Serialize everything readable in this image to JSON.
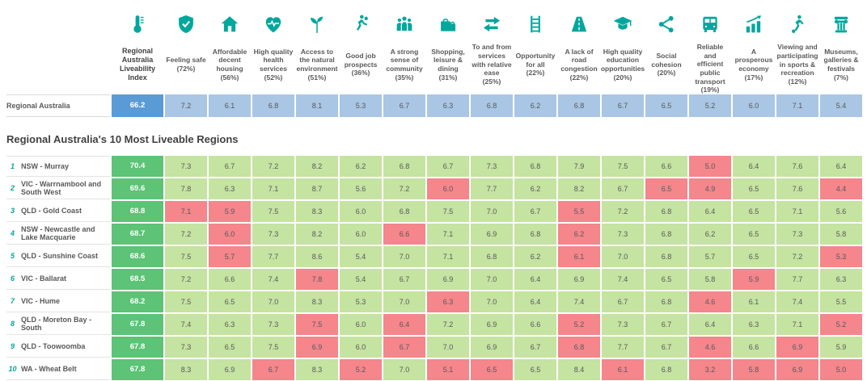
{
  "colors": {
    "teal": "#00A79D",
    "text": "#58595B",
    "title_text": "#414042",
    "index_blue": "#5B9BD5",
    "cell_blue": "#A9C6E4",
    "index_green": "#5CC377",
    "cell_green": "#C5E3A1",
    "cell_red": "#F4868C"
  },
  "chart_data": {
    "type": "heatmap",
    "title": "Regional Australia's 10 Most Liveable Regions",
    "index_header": "Regional Australia Liveability Index",
    "index_header_icon": "thermometer-icon",
    "value_range": [
      0,
      10
    ],
    "columns": [
      {
        "icon": "shield-check-icon",
        "label": "Feeling safe",
        "pct": "(72%)"
      },
      {
        "icon": "house-icon",
        "label": "Affordable decent housing",
        "pct": "(56%)"
      },
      {
        "icon": "heart-pulse-icon",
        "label": "High quality health services",
        "pct": "(52%)"
      },
      {
        "icon": "plant-icon",
        "label": "Access to the natural environment",
        "pct": "(51%)"
      },
      {
        "icon": "runner-icon",
        "label": "Good job prospects",
        "pct": "(36%)"
      },
      {
        "icon": "people-icon",
        "label": "A strong sense of community",
        "pct": "(35%)"
      },
      {
        "icon": "shopping-bag-icon",
        "label": "Shopping, leisure & dining",
        "pct": "(31%)"
      },
      {
        "icon": "arrows-leftright-icon",
        "label": "To and from services with relative ease",
        "pct": "(25%)"
      },
      {
        "icon": "ladder-icon",
        "label": "Opportunity for all",
        "pct": "(22%)"
      },
      {
        "icon": "road-icon",
        "label": "A lack of road congestion",
        "pct": "(22%)"
      },
      {
        "icon": "graduation-cap-icon",
        "label": "High quality education opportunities",
        "pct": "(20%)"
      },
      {
        "icon": "share-nodes-icon",
        "label": "Social cohesion",
        "pct": "(20%)"
      },
      {
        "icon": "bus-icon",
        "label": "Reliable and efficient public transport",
        "pct": "(19%)"
      },
      {
        "icon": "chart-growth-icon",
        "label": "A prosperous economy",
        "pct": "(17%)"
      },
      {
        "icon": "sports-person-icon",
        "label": "Viewing and participating in sports & recreation",
        "pct": "(12%)"
      },
      {
        "icon": "museum-icon",
        "label": "Museums, galleries & festivals",
        "pct": "(7%)"
      }
    ],
    "baseline": {
      "name": "Regional Australia",
      "index": "66.2",
      "values": [
        "7.2",
        "6.1",
        "6.8",
        "8.1",
        "5.3",
        "6.7",
        "6.3",
        "6.8",
        "6.2",
        "6.8",
        "6.7",
        "6.5",
        "5.2",
        "6.0",
        "7.1",
        "5.4"
      ]
    },
    "regions": [
      {
        "rank": "1",
        "name": "NSW - Murray",
        "index": "70.4",
        "values": [
          "7.3",
          "6.7",
          "7.2",
          "8.2",
          "6.2",
          "6.8",
          "6.7",
          "7.3",
          "6.8",
          "7.9",
          "7.5",
          "6.6",
          "5.0",
          "6.4",
          "7.6",
          "6.4"
        ],
        "low_cells": [
          12
        ]
      },
      {
        "rank": "2",
        "name": "VIC - Warrnambool and South West",
        "index": "69.6",
        "values": [
          "7.8",
          "6.3",
          "7.1",
          "8.7",
          "5.6",
          "7.2",
          "6.0",
          "7.7",
          "6.2",
          "8.2",
          "6.7",
          "6.5",
          "4.9",
          "6.5",
          "7.6",
          "4.4"
        ],
        "low_cells": [
          6,
          11,
          12,
          15
        ]
      },
      {
        "rank": "3",
        "name": "QLD - Gold Coast",
        "index": "68.8",
        "values": [
          "7.1",
          "5.9",
          "7.5",
          "8.3",
          "6.0",
          "6.8",
          "7.5",
          "7.0",
          "6.7",
          "5.5",
          "7.2",
          "6.8",
          "6.4",
          "6.5",
          "7.1",
          "5.6"
        ],
        "low_cells": [
          0,
          1,
          9
        ]
      },
      {
        "rank": "4",
        "name": "NSW - Newcastle and Lake Macquarie",
        "index": "68.7",
        "values": [
          "7.2",
          "6.0",
          "7.3",
          "8.2",
          "6.0",
          "6.6",
          "7.1",
          "6.9",
          "6.8",
          "6.2",
          "7.3",
          "6.8",
          "6.2",
          "6.5",
          "7.3",
          "5.8"
        ],
        "low_cells": [
          1,
          5,
          9
        ]
      },
      {
        "rank": "5",
        "name": "QLD - Sunshine Coast",
        "index": "68.6",
        "values": [
          "7.5",
          "5.7",
          "7.7",
          "8.6",
          "5.4",
          "7.0",
          "7.1",
          "6.8",
          "6.2",
          "6.1",
          "7.0",
          "6.8",
          "5.7",
          "6.5",
          "7.2",
          "5.3"
        ],
        "low_cells": [
          1,
          9,
          15
        ]
      },
      {
        "rank": "6",
        "name": "VIC - Ballarat",
        "index": "68.5",
        "values": [
          "7.2",
          "6.6",
          "7.4",
          "7.8",
          "5.4",
          "6.7",
          "6.9",
          "7.0",
          "6.4",
          "6.9",
          "7.4",
          "6.5",
          "5.8",
          "5.9",
          "7.7",
          "6.3"
        ],
        "low_cells": [
          3,
          13
        ]
      },
      {
        "rank": "7",
        "name": "VIC - Hume",
        "index": "68.2",
        "values": [
          "7.5",
          "6.5",
          "7.0",
          "8.3",
          "5.3",
          "7.0",
          "6.3",
          "7.0",
          "6.4",
          "7.4",
          "6.7",
          "6.8",
          "4.6",
          "6.1",
          "7.4",
          "5.5"
        ],
        "low_cells": [
          6,
          12
        ]
      },
      {
        "rank": "8",
        "name": "QLD - Moreton Bay - South",
        "index": "67.8",
        "values": [
          "7.4",
          "6.3",
          "7.3",
          "7.5",
          "6.0",
          "6.4",
          "7.2",
          "6.9",
          "6.6",
          "5.2",
          "7.3",
          "6.7",
          "6.4",
          "6.3",
          "7.1",
          "5.2"
        ],
        "low_cells": [
          3,
          5,
          9,
          15
        ]
      },
      {
        "rank": "9",
        "name": "QLD - Toowoomba",
        "index": "67.8",
        "values": [
          "7.3",
          "6.5",
          "7.5",
          "6.9",
          "6.0",
          "6.7",
          "7.0",
          "6.9",
          "6.7",
          "6.8",
          "7.7",
          "6.7",
          "4.6",
          "6.6",
          "6.9",
          "5.9"
        ],
        "low_cells": [
          3,
          5,
          9,
          12,
          14
        ]
      },
      {
        "rank": "10",
        "name": "WA - Wheat Belt",
        "index": "67.8",
        "values": [
          "8.3",
          "6.9",
          "6.7",
          "8.3",
          "5.2",
          "7.0",
          "5.1",
          "6.5",
          "6.5",
          "8.4",
          "6.1",
          "6.8",
          "3.2",
          "5.8",
          "6.9",
          "5.0"
        ],
        "low_cells": [
          2,
          4,
          6,
          7,
          10,
          12,
          13,
          14,
          15
        ]
      }
    ]
  }
}
